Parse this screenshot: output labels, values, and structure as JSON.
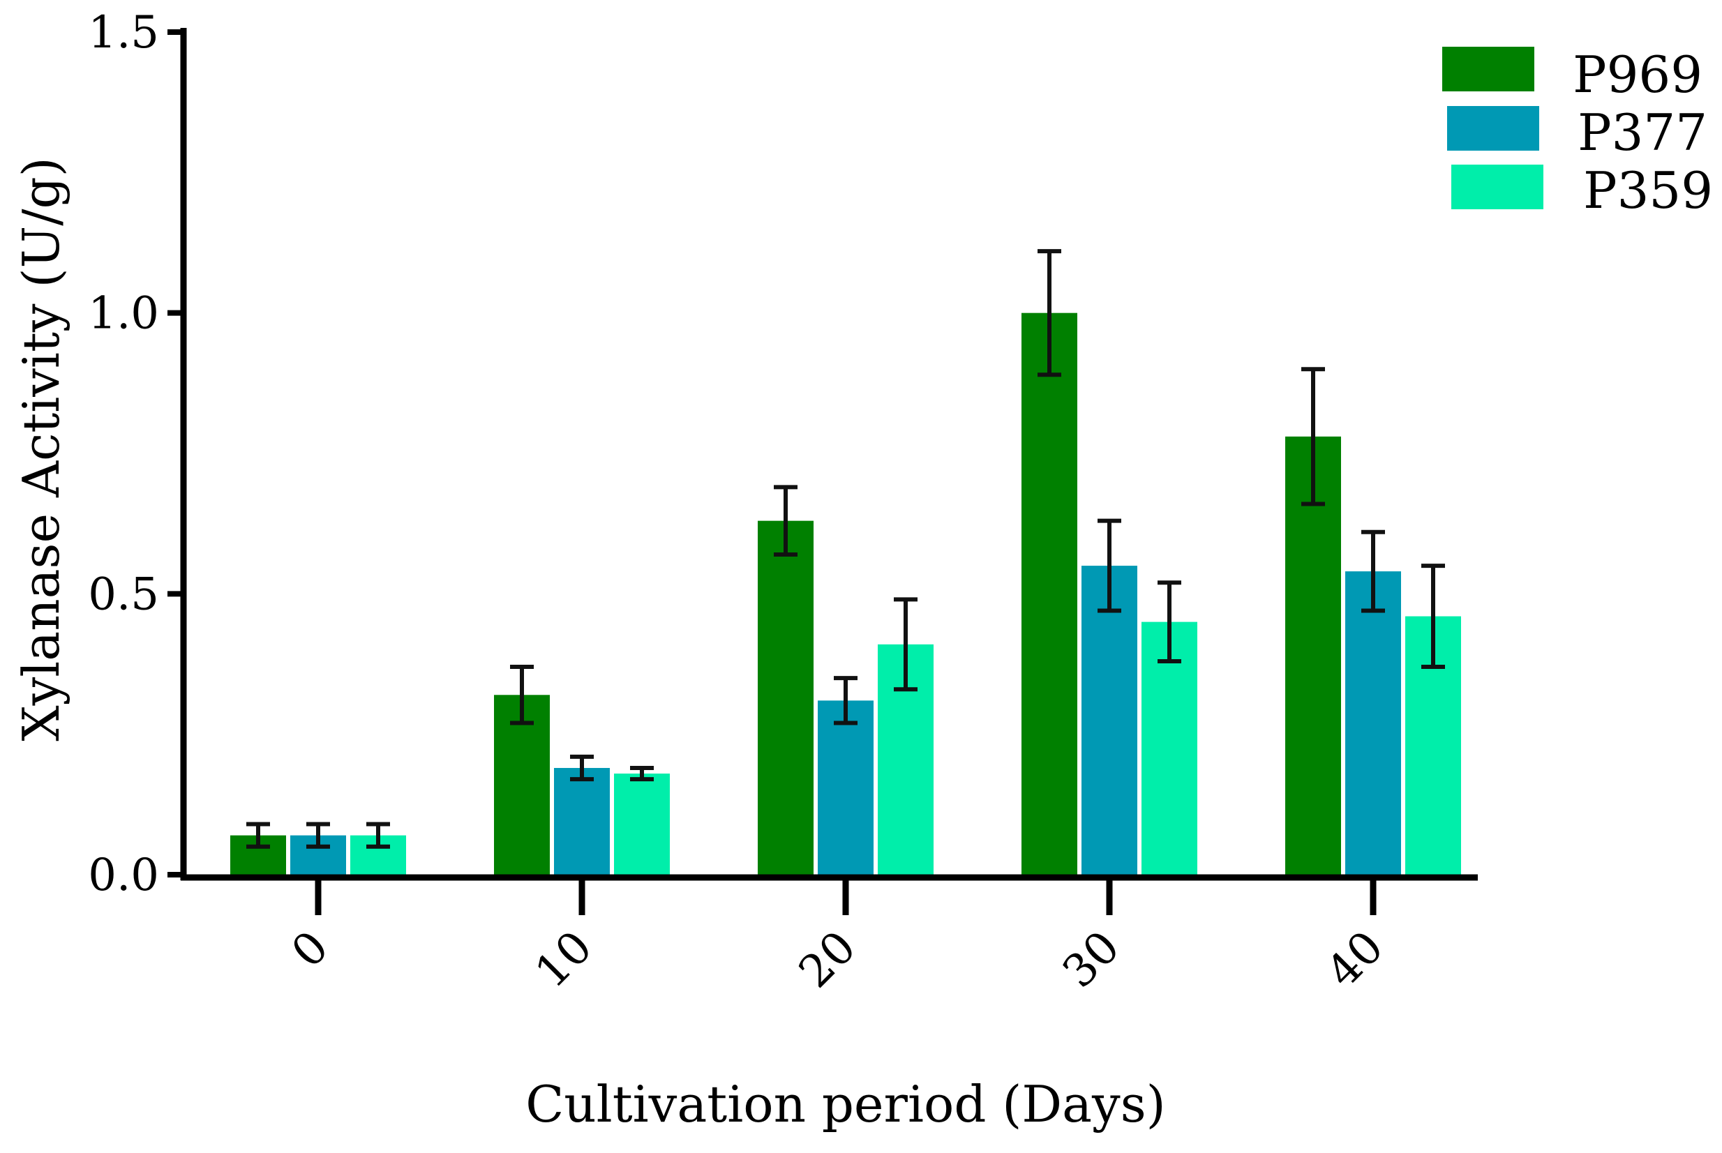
{
  "chart_data": {
    "type": "bar",
    "title": "",
    "xlabel": "Cultivation period (Days)",
    "ylabel": "Xylanase Activity (U/g)",
    "ylim": [
      0,
      1.5
    ],
    "yticks": [
      0.0,
      0.5,
      1.0,
      1.5
    ],
    "ytick_labels": [
      "0.0",
      "0.5",
      "1.0",
      "1.5"
    ],
    "categories": [
      "0",
      "10",
      "20",
      "30",
      "40"
    ],
    "legend_position": "top-right",
    "grid": false,
    "series": [
      {
        "name": "P969",
        "color": "#008000",
        "values": [
          0.07,
          0.32,
          0.63,
          1.0,
          0.78
        ],
        "errors": [
          0.02,
          0.05,
          0.06,
          0.11,
          0.12
        ]
      },
      {
        "name": "P377",
        "color": "#0099b4",
        "values": [
          0.07,
          0.19,
          0.31,
          0.55,
          0.54
        ],
        "errors": [
          0.02,
          0.02,
          0.04,
          0.08,
          0.07
        ]
      },
      {
        "name": "P359",
        "color": "#00eeaa",
        "values": [
          0.07,
          0.18,
          0.41,
          0.45,
          0.46
        ],
        "errors": [
          0.02,
          0.01,
          0.08,
          0.07,
          0.09
        ]
      }
    ]
  }
}
